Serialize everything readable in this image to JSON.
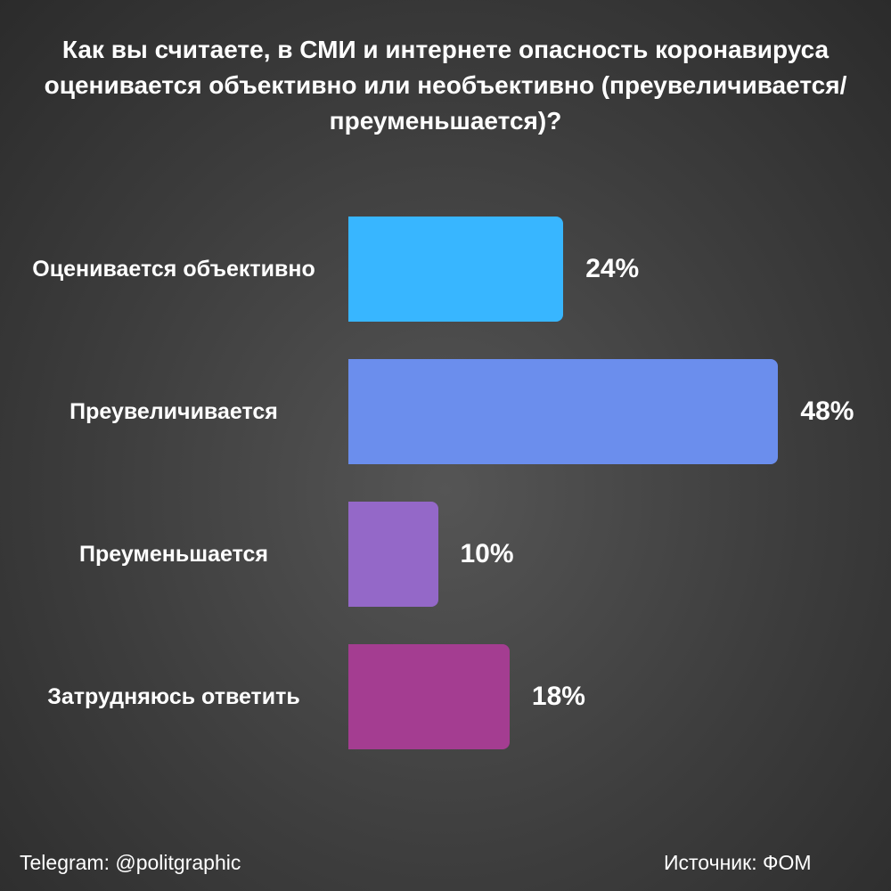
{
  "chart_data": {
    "type": "bar",
    "orientation": "horizontal",
    "title": "Как вы считаете, в СМИ и интернете опасность коронавируса оценивается объективно или необъективно (преувеличивается/преуменьшается)?",
    "categories": [
      "Оценивается объективно",
      "Преувеличивается",
      "Преуменьшается",
      "Затрудняюсь ответить"
    ],
    "values": [
      24,
      48,
      10,
      18
    ],
    "value_labels": [
      "24%",
      "48%",
      "10%",
      "18%"
    ],
    "colors": [
      "#38b6ff",
      "#6b8eed",
      "#9468c8",
      "#a43d91"
    ]
  },
  "footer": {
    "left": "Telegram: @politgraphic",
    "right": "Источник: ФОМ"
  }
}
